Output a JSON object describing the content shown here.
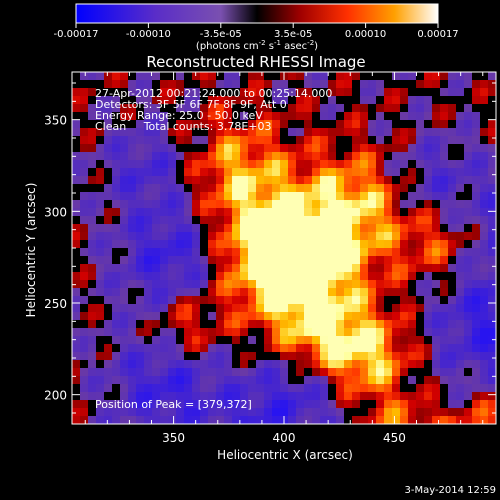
{
  "chart_data": {
    "type": "heatmap",
    "title": "Reconstructed RHESSI Image",
    "xlabel": "Heliocentric X (arcsec)",
    "ylabel": "Heliocentric Y (arcsec)",
    "xlim": [
      304,
      496
    ],
    "ylim": [
      184,
      376
    ],
    "x_ticks": [
      350,
      400,
      450
    ],
    "y_ticks": [
      200,
      250,
      300,
      350
    ],
    "colorbar": {
      "ticks": [
        "-0.00017",
        "-0.00010",
        "-3.5e-05",
        "3.5e-05",
        "0.00010",
        "0.00017"
      ],
      "unit_text": "(photons cm",
      "unit_sup1": "-2",
      "unit_mid1": " s",
      "unit_sup2": "-1",
      "unit_mid2": " asec",
      "unit_sup3": "-2",
      "unit_end": ")",
      "range": [
        -0.00017,
        0.00017
      ]
    },
    "annotations": [
      "27-Apr-2012 00:21:24.000 to 00:25:14.000",
      "Detectors: 3F 5F 6F 7F 8F 9F, Att 0",
      "Energy Range: 25.0 - 50.0 keV",
      "Clean     Total counts: 3.78E+03"
    ],
    "peak_label": "Position of Peak = [379,372]",
    "date_stamp": "3-May-2014 12:59",
    "colors": {
      "background": "#000000",
      "text": "#ffffff"
    }
  }
}
